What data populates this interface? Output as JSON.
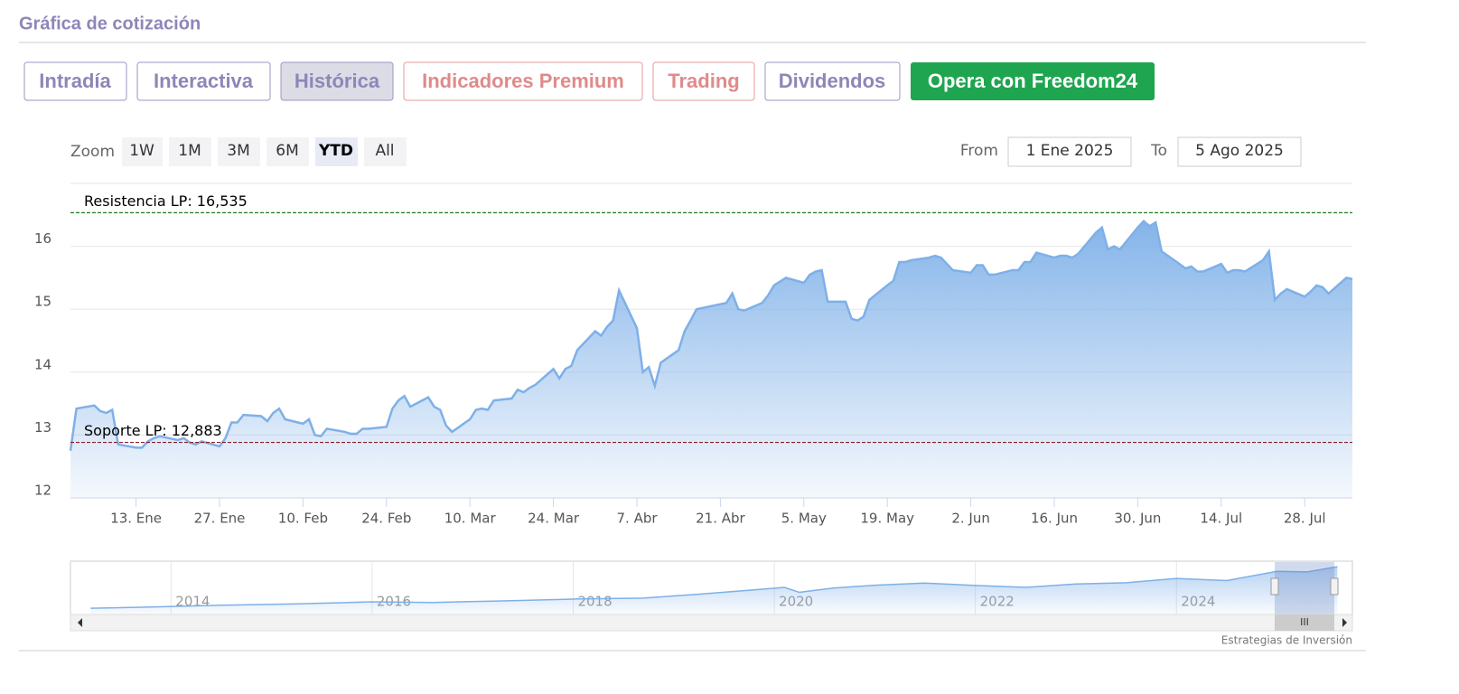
{
  "header": {
    "title": "Gráfica de cotización"
  },
  "tabs": [
    "Intradía",
    "Interactiva",
    "Histórica",
    "Indicadores Premium",
    "Trading",
    "Dividendos",
    "Opera con Freedom24"
  ],
  "zoom": {
    "label": "Zoom",
    "buttons": [
      "1W",
      "1M",
      "3M",
      "6M",
      "YTD",
      "All"
    ]
  },
  "range": {
    "from_label": "From",
    "from": "1 Ene 2025",
    "to_label": "To",
    "to": "5 Ago 2025"
  },
  "credit": "Estrategias de Inversión",
  "chart_data": [
    {
      "type": "area",
      "xlim": [
        "2025-01-02",
        "2025-08-05"
      ],
      "ylim": [
        12,
        17
      ],
      "yticks": [
        12,
        13,
        14,
        15,
        16
      ],
      "grid": true,
      "xticks": [
        {
          "value": "2025-01-13",
          "label": "13. Ene"
        },
        {
          "value": "2025-01-27",
          "label": "27. Ene"
        },
        {
          "value": "2025-02-10",
          "label": "10. Feb"
        },
        {
          "value": "2025-02-24",
          "label": "24. Feb"
        },
        {
          "value": "2025-03-10",
          "label": "10. Mar"
        },
        {
          "value": "2025-03-24",
          "label": "24. Mar"
        },
        {
          "value": "2025-04-07",
          "label": "7. Abr"
        },
        {
          "value": "2025-04-21",
          "label": "21. Abr"
        },
        {
          "value": "2025-05-05",
          "label": "5. May"
        },
        {
          "value": "2025-05-19",
          "label": "19. May"
        },
        {
          "value": "2025-06-02",
          "label": "2. Jun"
        },
        {
          "value": "2025-06-16",
          "label": "16. Jun"
        },
        {
          "value": "2025-06-30",
          "label": "30. Jun"
        },
        {
          "value": "2025-07-14",
          "label": "14. Jul"
        },
        {
          "value": "2025-07-28",
          "label": "28. Jul"
        }
      ],
      "reference_lines": [
        {
          "label": "Resistencia LP: 16,535",
          "value": 16.535,
          "color": "#1f7a1f"
        },
        {
          "label": "Soporte LP: 12,883",
          "value": 12.883,
          "color": "#8b1a2b"
        }
      ],
      "series": [
        {
          "color": "#7eb0e8",
          "x": [
            "2025-01-02",
            "2025-01-03",
            "2025-01-06",
            "2025-01-07",
            "2025-01-08",
            "2025-01-09",
            "2025-01-10",
            "2025-01-13",
            "2025-01-14",
            "2025-01-15",
            "2025-01-16",
            "2025-01-17",
            "2025-01-20",
            "2025-01-21",
            "2025-01-22",
            "2025-01-23",
            "2025-01-24",
            "2025-01-27",
            "2025-01-28",
            "2025-01-29",
            "2025-01-30",
            "2025-01-31",
            "2025-02-03",
            "2025-02-04",
            "2025-02-05",
            "2025-02-06",
            "2025-02-07",
            "2025-02-10",
            "2025-02-11",
            "2025-02-12",
            "2025-02-13",
            "2025-02-14",
            "2025-02-17",
            "2025-02-18",
            "2025-02-19",
            "2025-02-20",
            "2025-02-21",
            "2025-02-24",
            "2025-02-25",
            "2025-02-26",
            "2025-02-27",
            "2025-02-28",
            "2025-03-03",
            "2025-03-04",
            "2025-03-05",
            "2025-03-06",
            "2025-03-07",
            "2025-03-10",
            "2025-03-11",
            "2025-03-12",
            "2025-03-13",
            "2025-03-14",
            "2025-03-17",
            "2025-03-18",
            "2025-03-19",
            "2025-03-20",
            "2025-03-21",
            "2025-03-24",
            "2025-03-25",
            "2025-03-26",
            "2025-03-27",
            "2025-03-28",
            "2025-03-31",
            "2025-04-01",
            "2025-04-02",
            "2025-04-03",
            "2025-04-04",
            "2025-04-07",
            "2025-04-08",
            "2025-04-09",
            "2025-04-10",
            "2025-04-11",
            "2025-04-14",
            "2025-04-15",
            "2025-04-16",
            "2025-04-17",
            "2025-04-22",
            "2025-04-23",
            "2025-04-24",
            "2025-04-25",
            "2025-04-28",
            "2025-04-29",
            "2025-04-30",
            "2025-05-02",
            "2025-05-05",
            "2025-05-06",
            "2025-05-07",
            "2025-05-08",
            "2025-05-09",
            "2025-05-12",
            "2025-05-13",
            "2025-05-14",
            "2025-05-15",
            "2025-05-16",
            "2025-05-19",
            "2025-05-20",
            "2025-05-21",
            "2025-05-22",
            "2025-05-23",
            "2025-05-26",
            "2025-05-27",
            "2025-05-28",
            "2025-05-29",
            "2025-05-30",
            "2025-06-02",
            "2025-06-03",
            "2025-06-04",
            "2025-06-05",
            "2025-06-06",
            "2025-06-09",
            "2025-06-10",
            "2025-06-11",
            "2025-06-12",
            "2025-06-13",
            "2025-06-16",
            "2025-06-17",
            "2025-06-18",
            "2025-06-19",
            "2025-06-20",
            "2025-06-23",
            "2025-06-24",
            "2025-06-25",
            "2025-06-26",
            "2025-06-27",
            "2025-06-30",
            "2025-07-01",
            "2025-07-02",
            "2025-07-03",
            "2025-07-04",
            "2025-07-07",
            "2025-07-08",
            "2025-07-09",
            "2025-07-10",
            "2025-07-11",
            "2025-07-14",
            "2025-07-15",
            "2025-07-16",
            "2025-07-17",
            "2025-07-18",
            "2025-07-21",
            "2025-07-22",
            "2025-07-23",
            "2025-07-24",
            "2025-07-25",
            "2025-07-28",
            "2025-07-29",
            "2025-07-30",
            "2025-07-31",
            "2025-08-01",
            "2025-08-04",
            "2025-08-05"
          ],
          "values": [
            12.75,
            13.42,
            13.47,
            13.38,
            13.35,
            13.4,
            12.85,
            12.8,
            12.8,
            12.9,
            12.95,
            12.98,
            12.92,
            12.95,
            12.88,
            12.85,
            12.9,
            12.82,
            12.95,
            13.2,
            13.2,
            13.32,
            13.3,
            13.22,
            13.35,
            13.42,
            13.25,
            13.18,
            13.25,
            13.0,
            12.98,
            13.1,
            13.05,
            13.02,
            13.02,
            13.1,
            13.1,
            13.13,
            13.42,
            13.55,
            13.62,
            13.45,
            13.6,
            13.45,
            13.4,
            13.15,
            13.05,
            13.25,
            13.4,
            13.42,
            13.4,
            13.55,
            13.58,
            13.72,
            13.68,
            13.75,
            13.8,
            14.05,
            13.9,
            14.05,
            14.1,
            14.35,
            14.65,
            14.58,
            14.72,
            14.82,
            15.3,
            14.7,
            14.0,
            14.08,
            13.78,
            14.15,
            14.35,
            14.65,
            14.82,
            15.0,
            15.1,
            15.25,
            15.0,
            14.98,
            15.1,
            15.22,
            15.38,
            15.5,
            15.42,
            15.55,
            15.6,
            15.62,
            15.12,
            15.12,
            14.85,
            14.82,
            14.88,
            15.15,
            15.38,
            15.45,
            15.75,
            15.75,
            15.78,
            15.82,
            15.85,
            15.82,
            15.72,
            15.62,
            15.58,
            15.7,
            15.7,
            15.55,
            15.55,
            15.62,
            15.62,
            15.75,
            15.75,
            15.9,
            15.82,
            15.85,
            15.85,
            15.82,
            15.88,
            16.22,
            16.3,
            15.95,
            16.0,
            15.95,
            16.3,
            16.4,
            16.32,
            16.38,
            15.92,
            15.72,
            15.65,
            15.68,
            15.6,
            15.6,
            15.72,
            15.58,
            15.62,
            15.62,
            15.6,
            15.78,
            15.92,
            15.15,
            15.25,
            15.32,
            15.2,
            15.28,
            15.38,
            15.35,
            15.25,
            15.5,
            15.48
          ]
        }
      ]
    },
    {
      "type": "navigator",
      "xlim": [
        2013,
        2025.75
      ],
      "ylim": [
        0,
        17
      ],
      "xticks": [
        2014,
        2016,
        2018,
        2020,
        2022,
        2024
      ],
      "series": [
        {
          "color": "#7eb0e8",
          "x": [
            2013.2,
            2013.8,
            2014.5,
            2015.2,
            2016.0,
            2016.6,
            2017.3,
            2018.0,
            2018.7,
            2019.3,
            2019.8,
            2020.1,
            2020.25,
            2020.6,
            2021.0,
            2021.5,
            2022.0,
            2022.5,
            2023.0,
            2023.5,
            2024.0,
            2024.5,
            2025.0,
            2025.3,
            2025.6
          ],
          "values": [
            2.0,
            2.4,
            3.0,
            3.4,
            4.1,
            3.9,
            4.4,
            5.0,
            5.3,
            6.7,
            8.0,
            8.8,
            7.2,
            8.6,
            9.5,
            10.2,
            9.4,
            8.8,
            9.9,
            10.3,
            11.7,
            11.0,
            14.0,
            13.8,
            15.5
          ]
        }
      ]
    }
  ]
}
